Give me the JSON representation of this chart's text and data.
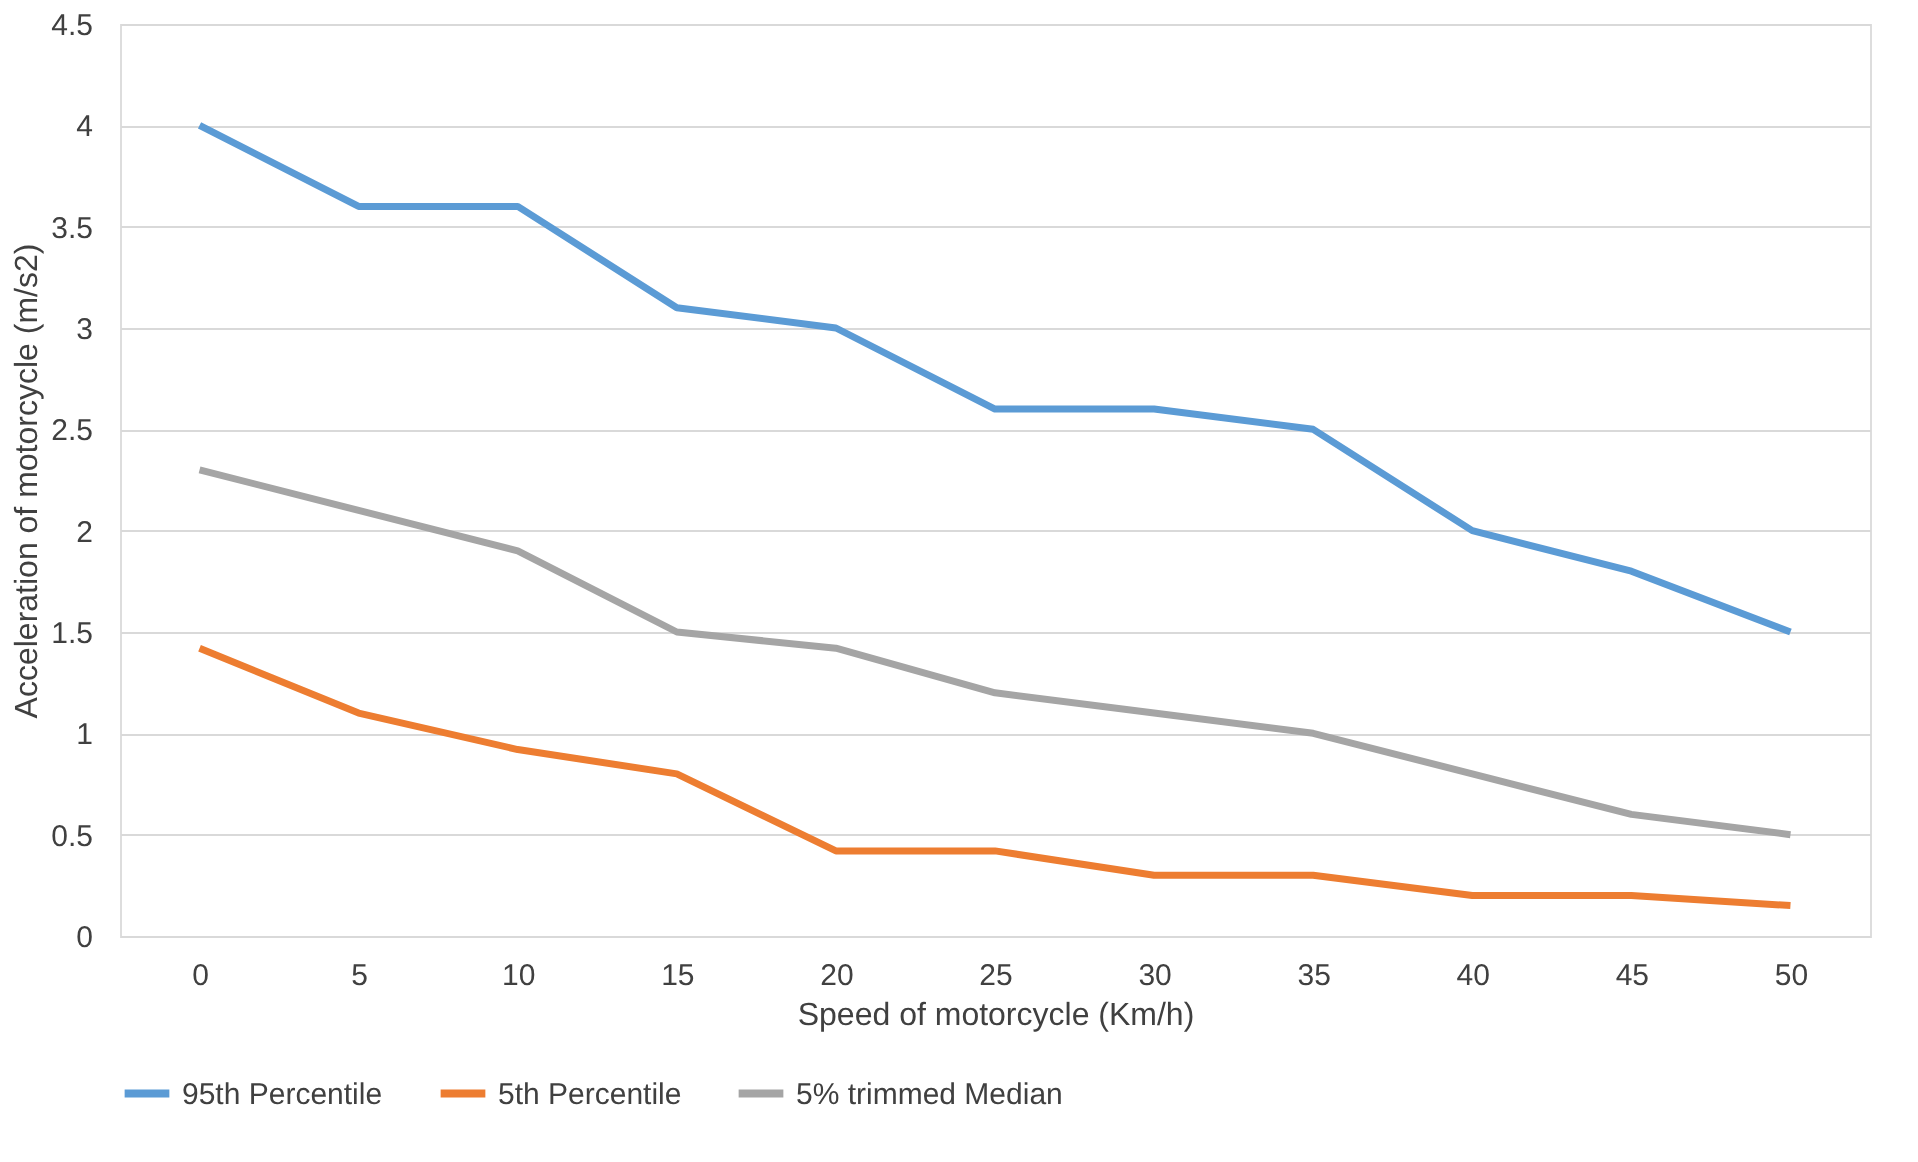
{
  "chart_data": {
    "type": "line",
    "xlabel": "Speed of motorcycle (Km/h)",
    "ylabel": "Acceleration of motorcycle (m/s2)",
    "categories": [
      "0",
      "5",
      "10",
      "15",
      "20",
      "25",
      "30",
      "35",
      "40",
      "45",
      "50"
    ],
    "series": [
      {
        "name": "95th Percentile",
        "color": "#5b9bd5",
        "values": [
          4.0,
          3.6,
          3.6,
          3.1,
          3.0,
          2.6,
          2.6,
          2.5,
          2.0,
          1.8,
          1.5
        ]
      },
      {
        "name": "5th Percentile",
        "color": "#ed7d31",
        "values": [
          1.42,
          1.1,
          0.92,
          0.8,
          0.42,
          0.42,
          0.3,
          0.3,
          0.2,
          0.2,
          0.15
        ]
      },
      {
        "name": "5% trimmed Median",
        "color": "#a5a5a5",
        "values": [
          2.3,
          2.1,
          1.9,
          1.5,
          1.42,
          1.2,
          1.1,
          1.0,
          0.8,
          0.6,
          0.5
        ]
      }
    ],
    "ylim": [
      0,
      4.5
    ],
    "yticks": [
      0,
      0.5,
      1,
      1.5,
      2,
      2.5,
      3,
      3.5,
      4,
      4.5
    ],
    "grid": "y",
    "legend": "bottom",
    "marker": "none",
    "line_style": "solid"
  }
}
